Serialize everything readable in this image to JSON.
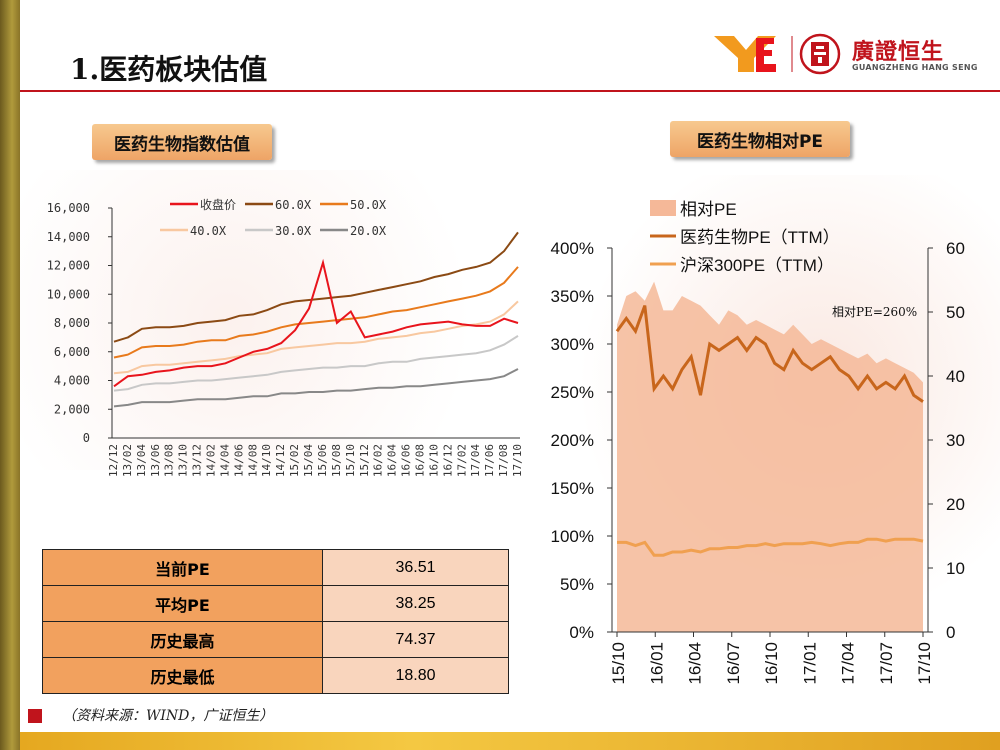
{
  "page": {
    "title": "1.医药板块估值",
    "logo_cn": "廣證恒生",
    "logo_en": "GUANGZHENG HANG SENG",
    "brand_color": "#c0141c",
    "source": "（资料来源：WIND，广证恒生）"
  },
  "chart_left": {
    "chip": "医药生物指数估值",
    "chart_data": {
      "type": "line",
      "title": "医药生物指数估值",
      "ylim": [
        0,
        16000
      ],
      "yticks": [
        "16,000",
        "14,000",
        "12,000",
        "10,000",
        "8,000",
        "6,000",
        "4,000",
        "2,000",
        "0"
      ],
      "xticks": [
        "12/12",
        "13/02",
        "13/04",
        "13/06",
        "13/08",
        "13/10",
        "13/12",
        "14/02",
        "14/04",
        "14/06",
        "14/08",
        "14/10",
        "14/12",
        "15/02",
        "15/04",
        "15/06",
        "15/08",
        "15/10",
        "15/12",
        "16/02",
        "16/04",
        "16/06",
        "16/08",
        "16/10",
        "16/12",
        "17/02",
        "17/04",
        "17/06",
        "17/08",
        "17/10"
      ],
      "legend": [
        "收盘价",
        "60.0X",
        "50.0X",
        "40.0X",
        "30.0X",
        "20.0X"
      ],
      "series": [
        {
          "name": "收盘价",
          "color": "#e8141c",
          "values": [
            3600,
            4300,
            4400,
            4600,
            4700,
            4900,
            5000,
            5000,
            5200,
            5600,
            6000,
            6200,
            6600,
            7500,
            9000,
            12200,
            8000,
            8800,
            7000,
            7200,
            7400,
            7700,
            7900,
            8000,
            8100,
            7900,
            7800,
            7800,
            8300,
            8000
          ]
        },
        {
          "name": "60.0X",
          "color": "#8b4a14",
          "values": [
            6700,
            7000,
            7600,
            7700,
            7700,
            7800,
            8000,
            8100,
            8200,
            8500,
            8600,
            8900,
            9300,
            9500,
            9600,
            9700,
            9800,
            9900,
            10100,
            10300,
            10500,
            10700,
            10900,
            11200,
            11400,
            11700,
            11900,
            12200,
            13000,
            14300
          ]
        },
        {
          "name": "50.0X",
          "color": "#e87a1c",
          "values": [
            5600,
            5800,
            6300,
            6400,
            6400,
            6500,
            6700,
            6800,
            6800,
            7100,
            7200,
            7400,
            7700,
            7900,
            8000,
            8100,
            8200,
            8300,
            8400,
            8600,
            8800,
            8900,
            9100,
            9300,
            9500,
            9700,
            9900,
            10200,
            10800,
            11900
          ]
        },
        {
          "name": "40.0X",
          "color": "#f8c8a0",
          "values": [
            4500,
            4600,
            5000,
            5100,
            5100,
            5200,
            5300,
            5400,
            5500,
            5700,
            5800,
            5900,
            6200,
            6300,
            6400,
            6500,
            6600,
            6600,
            6700,
            6900,
            7000,
            7100,
            7300,
            7400,
            7600,
            7800,
            7900,
            8100,
            8600,
            9500
          ]
        },
        {
          "name": "30.0X",
          "color": "#c8c8c8",
          "values": [
            3300,
            3400,
            3700,
            3800,
            3800,
            3900,
            4000,
            4000,
            4100,
            4200,
            4300,
            4400,
            4600,
            4700,
            4800,
            4900,
            4900,
            5000,
            5000,
            5200,
            5300,
            5300,
            5500,
            5600,
            5700,
            5800,
            5900,
            6100,
            6500,
            7100
          ]
        },
        {
          "name": "20.0X",
          "color": "#888888",
          "values": [
            2200,
            2300,
            2500,
            2500,
            2500,
            2600,
            2700,
            2700,
            2700,
            2800,
            2900,
            2900,
            3100,
            3100,
            3200,
            3200,
            3300,
            3300,
            3400,
            3500,
            3500,
            3600,
            3600,
            3700,
            3800,
            3900,
            4000,
            4100,
            4300,
            4800
          ]
        }
      ]
    }
  },
  "chart_right": {
    "chip": "医药生物相对PE",
    "annotation": "相对PE=260%",
    "chart_data": {
      "type": "area",
      "title": "医药生物相对PE",
      "ylim_left": [
        0,
        400
      ],
      "ylim_right": [
        0,
        60
      ],
      "yticks_left": [
        "400%",
        "350%",
        "300%",
        "250%",
        "200%",
        "150%",
        "100%",
        "50%",
        "0%"
      ],
      "yticks_right": [
        "60",
        "50",
        "40",
        "30",
        "20",
        "10",
        "0"
      ],
      "xticks": [
        "15/10",
        "16/01",
        "16/04",
        "16/07",
        "16/10",
        "17/01",
        "17/04",
        "17/07",
        "17/10"
      ],
      "legend": [
        "相对PE",
        "医药生物PE（TTM）",
        "沪深300PE（TTM）"
      ],
      "x": [
        0,
        0.25,
        0.5,
        0.75,
        1,
        1.25,
        1.5,
        1.75,
        2,
        2.25,
        2.5,
        2.75,
        3,
        3.25,
        3.5,
        3.75,
        4,
        4.25,
        4.5,
        4.75,
        5,
        5.25,
        5.5,
        5.75,
        6,
        6.25,
        6.5,
        6.75,
        7,
        7.25,
        7.5,
        7.75,
        8,
        8.25
      ],
      "series": [
        {
          "name": "相对PE",
          "color": "#f5b898",
          "axis": "left",
          "values": [
            320,
            350,
            355,
            345,
            365,
            335,
            335,
            350,
            345,
            340,
            330,
            320,
            335,
            330,
            320,
            325,
            320,
            315,
            310,
            320,
            310,
            300,
            305,
            300,
            295,
            290,
            285,
            290,
            280,
            285,
            280,
            275,
            270,
            260
          ]
        },
        {
          "name": "医药生物PE（TTM）",
          "color": "#c8661c",
          "axis": "right",
          "values": [
            47,
            49,
            47,
            51,
            38,
            40,
            38,
            41,
            43,
            37,
            45,
            44,
            45,
            46,
            44,
            46,
            45,
            42,
            41,
            44,
            42,
            41,
            42,
            43,
            41,
            40,
            38,
            40,
            38,
            39,
            38,
            40,
            37,
            36
          ]
        },
        {
          "name": "沪深300PE（TTM）",
          "color": "#f0a050",
          "axis": "right",
          "values": [
            14,
            14,
            13.5,
            14,
            12,
            12,
            12.5,
            12.5,
            12.8,
            12.5,
            13,
            13,
            13.2,
            13.2,
            13.5,
            13.5,
            13.8,
            13.5,
            13.8,
            13.8,
            13.8,
            14,
            13.8,
            13.5,
            13.8,
            14,
            14,
            14.5,
            14.5,
            14.2,
            14.5,
            14.5,
            14.5,
            14.2
          ]
        }
      ]
    }
  },
  "stats": {
    "rows": [
      {
        "label": "当前PE",
        "value": "36.51"
      },
      {
        "label": "平均PE",
        "value": "38.25"
      },
      {
        "label": "历史最高",
        "value": "74.37"
      },
      {
        "label": "历史最低",
        "value": "18.80"
      }
    ]
  }
}
